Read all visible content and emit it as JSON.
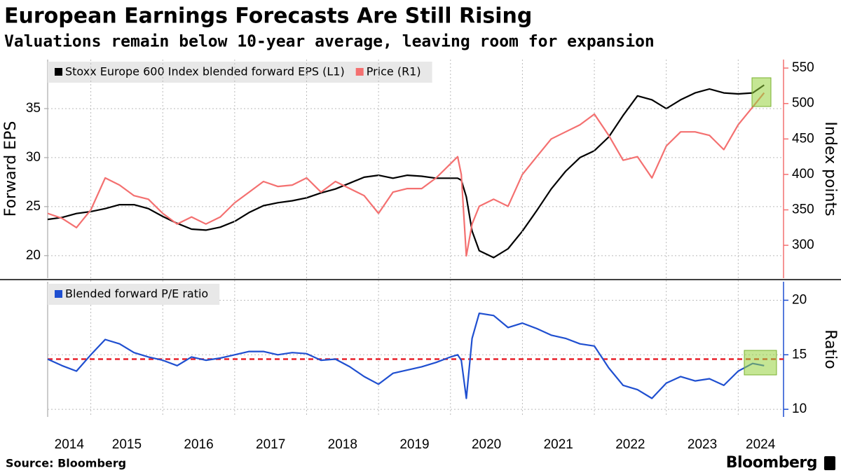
{
  "title": "European Earnings Forecasts Are Still Rising",
  "subtitle": "Valuations remain below 10-year average, leaving room for expansion",
  "source": "Source: Bloomberg",
  "brand": "Bloomberg",
  "chart_data": [
    {
      "type": "line",
      "x": [
        2014.4,
        2014.6,
        2014.8,
        2015.0,
        2015.2,
        2015.4,
        2015.6,
        2015.8,
        2016.0,
        2016.2,
        2016.4,
        2016.6,
        2016.8,
        2017.0,
        2017.2,
        2017.4,
        2017.6,
        2017.8,
        2018.0,
        2018.2,
        2018.4,
        2018.6,
        2018.8,
        2019.0,
        2019.2,
        2019.4,
        2019.6,
        2019.8,
        2020.0,
        2020.1,
        2020.15,
        2020.22,
        2020.3,
        2020.4,
        2020.6,
        2020.8,
        2021.0,
        2021.2,
        2021.4,
        2021.6,
        2021.8,
        2022.0,
        2022.2,
        2022.4,
        2022.6,
        2022.8,
        2023.0,
        2023.2,
        2023.4,
        2023.6,
        2023.8,
        2024.0,
        2024.2,
        2024.36
      ],
      "xlim": [
        2014.4,
        2024.63
      ],
      "ylabel": "Forward EPS",
      "y2label": "Index points",
      "ylim": [
        17.7,
        40
      ],
      "yticks": [
        20,
        25,
        30,
        35
      ],
      "y2lim": [
        253.6,
        562
      ],
      "y2ticks": [
        300,
        350,
        400,
        450,
        500,
        550
      ],
      "grid": true,
      "legend": "top-left",
      "series": [
        {
          "name": "Stoxx Europe 600 Index blended forward EPS (L1)",
          "color": "#000000",
          "values": [
            23.7,
            23.9,
            24.3,
            24.5,
            24.8,
            25.2,
            25.2,
            24.8,
            24.0,
            23.3,
            22.7,
            22.6,
            22.9,
            23.5,
            24.4,
            25.1,
            25.4,
            25.6,
            25.9,
            26.4,
            26.8,
            27.4,
            28.0,
            28.2,
            27.9,
            28.2,
            28.1,
            27.9,
            27.9,
            27.9,
            27.7,
            26.0,
            22.5,
            20.5,
            19.8,
            20.7,
            22.5,
            24.6,
            26.8,
            28.6,
            30.0,
            30.7,
            32.1,
            34.3,
            36.3,
            35.9,
            35.0,
            35.9,
            36.6,
            37.0,
            36.6,
            36.5,
            36.6,
            37.4
          ]
        },
        {
          "name": "Price (R1)",
          "color": "#f47070",
          "axis": "y2",
          "values": [
            345,
            338,
            325,
            350,
            395,
            385,
            370,
            365,
            345,
            330,
            340,
            330,
            340,
            360,
            375,
            390,
            383,
            385,
            395,
            375,
            390,
            380,
            370,
            345,
            375,
            380,
            380,
            395,
            415,
            425,
            400,
            285,
            330,
            355,
            365,
            355,
            400,
            425,
            450,
            460,
            470,
            485,
            455,
            420,
            425,
            395,
            440,
            460,
            460,
            455,
            435,
            470,
            495,
            515
          ]
        }
      ]
    },
    {
      "type": "line",
      "x": [
        2014.4,
        2014.6,
        2014.8,
        2015.0,
        2015.2,
        2015.4,
        2015.6,
        2015.8,
        2016.0,
        2016.2,
        2016.4,
        2016.6,
        2016.8,
        2017.0,
        2017.2,
        2017.4,
        2017.6,
        2017.8,
        2018.0,
        2018.2,
        2018.4,
        2018.6,
        2018.8,
        2019.0,
        2019.2,
        2019.4,
        2019.6,
        2019.8,
        2020.0,
        2020.1,
        2020.15,
        2020.22,
        2020.3,
        2020.4,
        2020.6,
        2020.8,
        2021.0,
        2021.2,
        2021.4,
        2021.6,
        2021.8,
        2022.0,
        2022.2,
        2022.4,
        2022.6,
        2022.8,
        2023.0,
        2023.2,
        2023.4,
        2023.6,
        2023.8,
        2024.0,
        2024.2,
        2024.36
      ],
      "xlim": [
        2014.4,
        2024.63
      ],
      "xticks": [
        {
          "value": 2014.7,
          "label": "2014"
        },
        {
          "value": 2015.5,
          "label": "2015"
        },
        {
          "value": 2016.5,
          "label": "2016"
        },
        {
          "value": 2017.5,
          "label": "2017"
        },
        {
          "value": 2018.5,
          "label": "2018"
        },
        {
          "value": 2019.5,
          "label": "2019"
        },
        {
          "value": 2020.5,
          "label": "2020"
        },
        {
          "value": 2021.5,
          "label": "2021"
        },
        {
          "value": 2022.5,
          "label": "2022"
        },
        {
          "value": 2023.5,
          "label": "2023"
        },
        {
          "value": 2024.31,
          "label": "2024"
        }
      ],
      "xgrid": [
        2015,
        2016,
        2017,
        2018,
        2019,
        2020,
        2021,
        2022,
        2023,
        2024
      ],
      "ylabel": "Ratio",
      "y_side": "right",
      "ylim": [
        9.3,
        21.7
      ],
      "yticks": [
        10,
        15,
        20
      ],
      "reference_line": {
        "value": 14.6,
        "color": "#e8202a"
      },
      "legend": "top-left",
      "series": [
        {
          "name": "Blended forward P/E ratio",
          "color": "#1f4fd0",
          "values": [
            14.6,
            14.0,
            13.5,
            15.0,
            16.4,
            16.0,
            15.2,
            14.8,
            14.5,
            14.0,
            14.8,
            14.5,
            14.7,
            15.0,
            15.3,
            15.3,
            15.0,
            15.2,
            15.1,
            14.5,
            14.6,
            13.9,
            13.0,
            12.3,
            13.3,
            13.6,
            13.9,
            14.3,
            14.8,
            15.0,
            14.5,
            11.0,
            16.5,
            18.8,
            18.6,
            17.5,
            17.9,
            17.4,
            16.8,
            16.5,
            16.0,
            15.8,
            13.8,
            12.2,
            11.8,
            11.0,
            12.4,
            13.0,
            12.6,
            12.8,
            12.2,
            13.5,
            14.2,
            14.0
          ]
        }
      ]
    }
  ]
}
